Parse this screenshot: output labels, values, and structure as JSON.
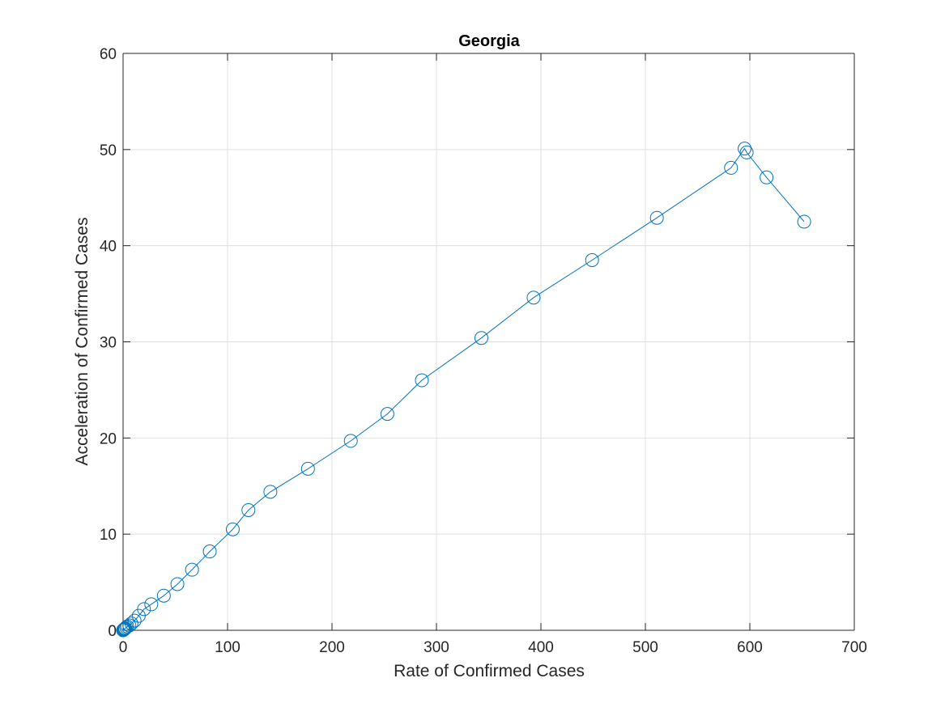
{
  "chart_data": {
    "type": "line",
    "title": "Georgia",
    "xlabel": "Rate of Confirmed Cases",
    "ylabel": "Acceleration of Confirmed Cases",
    "xlim": [
      0,
      700
    ],
    "ylim": [
      0,
      60
    ],
    "xticks": [
      0,
      100,
      200,
      300,
      400,
      500,
      600,
      700
    ],
    "yticks": [
      0,
      10,
      20,
      30,
      40,
      50,
      60
    ],
    "grid": true,
    "marker": "circle",
    "color": "#0072bd",
    "series": [
      {
        "x": [
          0,
          0.5,
          1,
          1.5,
          2,
          3,
          4,
          6,
          8,
          11,
          15,
          20,
          27,
          39,
          52,
          66,
          83,
          105,
          120,
          141,
          177,
          218,
          253,
          286,
          343,
          393,
          449,
          511,
          582,
          595,
          597,
          616,
          652
        ],
        "y": [
          0,
          0.05,
          0.1,
          0.15,
          0.2,
          0.3,
          0.4,
          0.5,
          0.7,
          1.0,
          1.5,
          2.2,
          2.7,
          3.6,
          4.8,
          6.3,
          8.2,
          10.5,
          12.5,
          14.4,
          16.8,
          19.7,
          22.5,
          26.0,
          30.4,
          34.6,
          38.5,
          42.9,
          48.1,
          50.1,
          49.7,
          47.1,
          42.5
        ]
      }
    ]
  }
}
